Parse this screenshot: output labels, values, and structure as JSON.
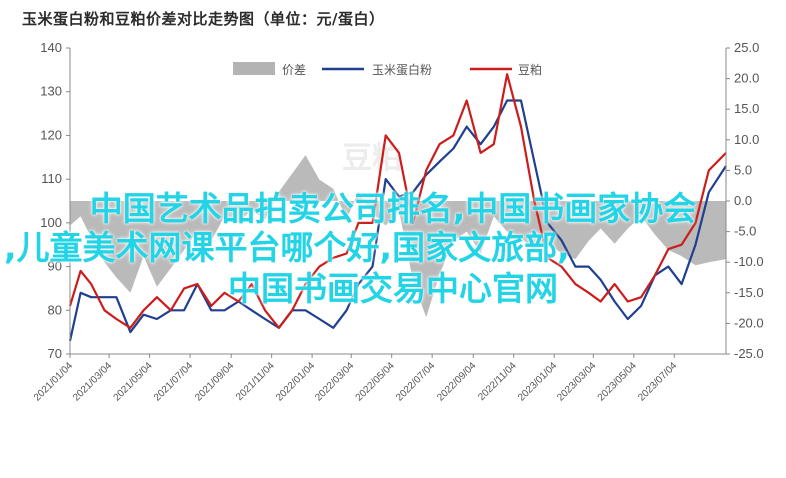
{
  "title": "玉米蛋白粉和豆粕价差对比走势图（单位：元/蛋白）",
  "overlay_text": {
    "line1": "中国艺术品拍卖公司排名,中国书画家协会",
    "line2": ",儿童美术网课平台哪个好,国家文旅部,",
    "line3": "中国书画交易中心官网"
  },
  "chart_data": {
    "type": "line",
    "title": "玉米蛋白粉和豆粕价差对比走势图（单位：元/蛋白）",
    "x_tick_labels": [
      "2021/01/04",
      "2021/03/04",
      "2021/05/04",
      "2021/07/04",
      "2021/09/04",
      "2021/11/04",
      "2022/01/04",
      "2022/03/04",
      "2022/05/04",
      "2022/07/04",
      "2022/09/04",
      "2022/11/04",
      "2023/01/04",
      "2023/03/04",
      "2023/05/04",
      "2023/07/04"
    ],
    "x_range": [
      "2021/01/04",
      "2023/09/20"
    ],
    "y_left": {
      "min": 70,
      "max": 140,
      "step": 10,
      "ticks": [
        "70",
        "80",
        "90",
        "100",
        "110",
        "120",
        "130",
        "140"
      ]
    },
    "y_right": {
      "min": -25,
      "max": 25,
      "step": 5,
      "ticks": [
        "-25.0",
        "-20.0",
        "-15.0",
        "-10.0",
        "-5.0",
        "0.0",
        "5.0",
        "10.0",
        "15.0",
        "20.0",
        "25.0"
      ]
    },
    "grid": false,
    "legend_position": "top",
    "series": [
      {
        "name": "价差",
        "axis": "right",
        "style": "area",
        "color": "#b3b3b3",
        "x": [
          "2021/01/04",
          "2021/01/20",
          "2021/02/05",
          "2021/02/25",
          "2021/03/15",
          "2021/04/05",
          "2021/04/25",
          "2021/05/15",
          "2021/06/05",
          "2021/06/25",
          "2021/07/15",
          "2021/08/05",
          "2021/08/25",
          "2021/09/15",
          "2021/10/05",
          "2021/10/25",
          "2021/11/15",
          "2021/12/05",
          "2021/12/25",
          "2022/01/15",
          "2022/02/05",
          "2022/02/25",
          "2022/03/15",
          "2022/04/05",
          "2022/04/25",
          "2022/05/15",
          "2022/06/05",
          "2022/06/25",
          "2022/07/15",
          "2022/08/05",
          "2022/08/25",
          "2022/09/15",
          "2022/10/05",
          "2022/10/25",
          "2022/11/15",
          "2022/12/05",
          "2022/12/25",
          "2023/01/15",
          "2023/02/05",
          "2023/02/25",
          "2023/03/15",
          "2023/04/05",
          "2023/04/25",
          "2023/05/15",
          "2023/06/05",
          "2023/06/25",
          "2023/07/15",
          "2023/08/05",
          "2023/08/25",
          "2023/09/20"
        ],
        "values": [
          -4.0,
          -2.5,
          -6.0,
          -10.0,
          -12.5,
          -15.0,
          -9.0,
          -14.0,
          -11.0,
          -8.0,
          -5.0,
          -6.5,
          -2.5,
          -3.5,
          -1.5,
          -3.0,
          1.5,
          4.5,
          7.5,
          3.5,
          2.0,
          -3.0,
          1.5,
          -2.0,
          -4.0,
          -1.5,
          -13.0,
          -19.0,
          -12.0,
          -6.5,
          -5.0,
          -8.5,
          -2.5,
          -5.0,
          -6.0,
          -8.0,
          -7.0,
          -8.5,
          -9.5,
          -6.5,
          -4.5,
          -7.0,
          -4.5,
          -2.5,
          -5.5,
          -8.0,
          -9.0,
          -10.5,
          -10.0,
          -9.5
        ]
      },
      {
        "name": "玉米蛋白粉",
        "axis": "left",
        "style": "line",
        "color": "#1f3f8f",
        "x": [
          "2021/01/04",
          "2021/01/20",
          "2021/02/05",
          "2021/02/25",
          "2021/03/15",
          "2021/04/05",
          "2021/04/25",
          "2021/05/15",
          "2021/06/05",
          "2021/06/25",
          "2021/07/15",
          "2021/08/05",
          "2021/08/25",
          "2021/09/15",
          "2021/10/05",
          "2021/10/25",
          "2021/11/15",
          "2021/12/05",
          "2021/12/25",
          "2022/01/15",
          "2022/02/05",
          "2022/02/25",
          "2022/03/15",
          "2022/04/05",
          "2022/04/25",
          "2022/05/15",
          "2022/06/05",
          "2022/06/25",
          "2022/07/15",
          "2022/08/05",
          "2022/08/25",
          "2022/09/15",
          "2022/10/05",
          "2022/10/25",
          "2022/11/15",
          "2022/12/05",
          "2022/12/25",
          "2023/01/15",
          "2023/02/05",
          "2023/02/25",
          "2023/03/15",
          "2023/04/05",
          "2023/04/25",
          "2023/05/15",
          "2023/06/05",
          "2023/06/25",
          "2023/07/15",
          "2023/08/05",
          "2023/08/25",
          "2023/09/20"
        ],
        "values": [
          73,
          84,
          83,
          83,
          83,
          75,
          79,
          78,
          80,
          80,
          86,
          80,
          80,
          82,
          80,
          78,
          76,
          80,
          80,
          78,
          76,
          80,
          86,
          90,
          110,
          106,
          107,
          111,
          114,
          117,
          122,
          118,
          122,
          128,
          128,
          114,
          100,
          96,
          90,
          90,
          87,
          82,
          78,
          81,
          88,
          90,
          86,
          95,
          107,
          113
        ]
      },
      {
        "name": "豆粕",
        "axis": "left",
        "style": "line",
        "color": "#cc1d1d",
        "x": [
          "2021/01/04",
          "2021/01/20",
          "2021/02/05",
          "2021/02/25",
          "2021/03/15",
          "2021/04/05",
          "2021/04/25",
          "2021/05/15",
          "2021/06/05",
          "2021/06/25",
          "2021/07/15",
          "2021/08/05",
          "2021/08/25",
          "2021/09/15",
          "2021/10/05",
          "2021/10/25",
          "2021/11/15",
          "2021/12/05",
          "2021/12/25",
          "2022/01/15",
          "2022/02/05",
          "2022/02/25",
          "2022/03/15",
          "2022/04/05",
          "2022/04/25",
          "2022/05/15",
          "2022/06/05",
          "2022/06/25",
          "2022/07/15",
          "2022/08/05",
          "2022/08/25",
          "2022/09/15",
          "2022/10/05",
          "2022/10/25",
          "2022/11/15",
          "2022/12/05",
          "2022/12/25",
          "2023/01/15",
          "2023/02/05",
          "2023/02/25",
          "2023/03/15",
          "2023/04/05",
          "2023/04/25",
          "2023/05/15",
          "2023/06/05",
          "2023/06/25",
          "2023/07/15",
          "2023/08/05",
          "2023/08/25",
          "2023/09/20"
        ],
        "values": [
          81,
          89,
          86,
          80,
          78,
          76,
          80,
          83,
          80,
          85,
          86,
          81,
          84,
          82,
          86,
          80,
          76,
          80,
          86,
          90,
          92,
          93,
          100,
          100,
          120,
          116,
          100,
          112,
          118,
          120,
          128,
          116,
          118,
          134,
          122,
          105,
          92,
          90,
          86,
          84,
          82,
          86,
          82,
          83,
          88,
          94,
          95,
          100,
          112,
          116
        ]
      }
    ],
    "watermark": "豆粕"
  }
}
